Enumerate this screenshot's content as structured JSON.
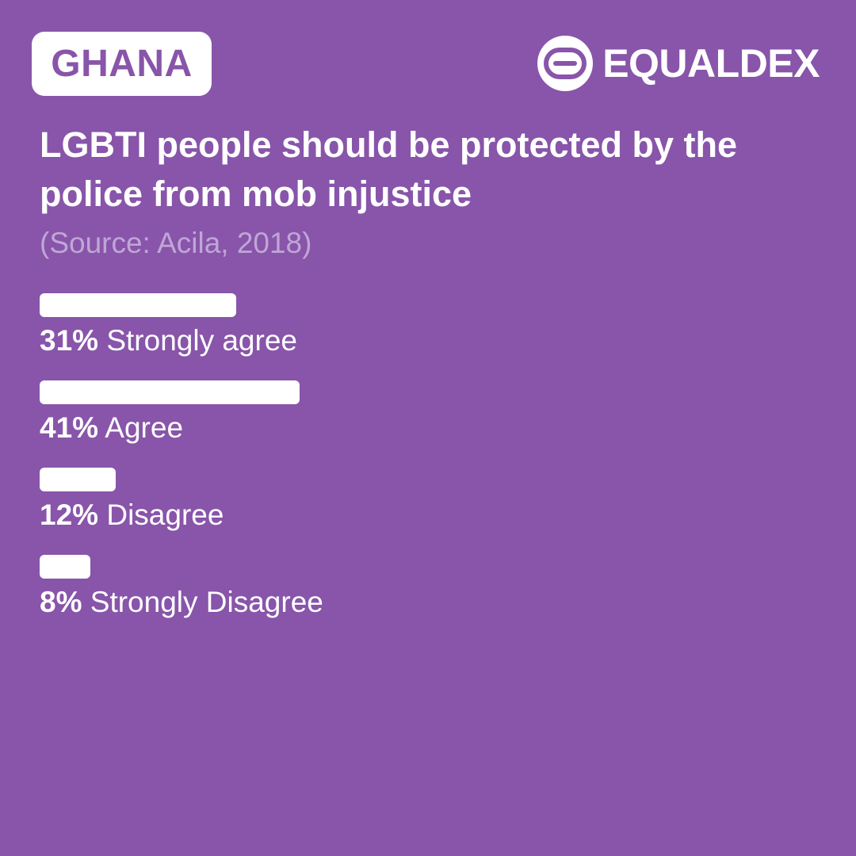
{
  "country": "GHANA",
  "brand": {
    "name": "EQUALDEX",
    "logo_icon": "equaldex-logo-icon"
  },
  "title": "LGBTI people should be protected by the police from mob injustice",
  "source": "(Source: Acila, 2018)",
  "colors": {
    "background": "#8855aa",
    "bar": "#ffffff",
    "source_text": "#c0a6d6"
  },
  "chart_data": {
    "type": "bar",
    "orientation": "horizontal",
    "title": "LGBTI people should be protected by the police from mob injustice",
    "categories": [
      "Strongly agree",
      "Agree",
      "Disagree",
      "Strongly Disagree"
    ],
    "values": [
      31,
      41,
      12,
      8
    ],
    "value_labels": [
      "31%",
      "41%",
      "12%",
      "8%"
    ],
    "unit": "%",
    "xlim": [
      0,
      100
    ],
    "grid": false,
    "legend": "none"
  }
}
